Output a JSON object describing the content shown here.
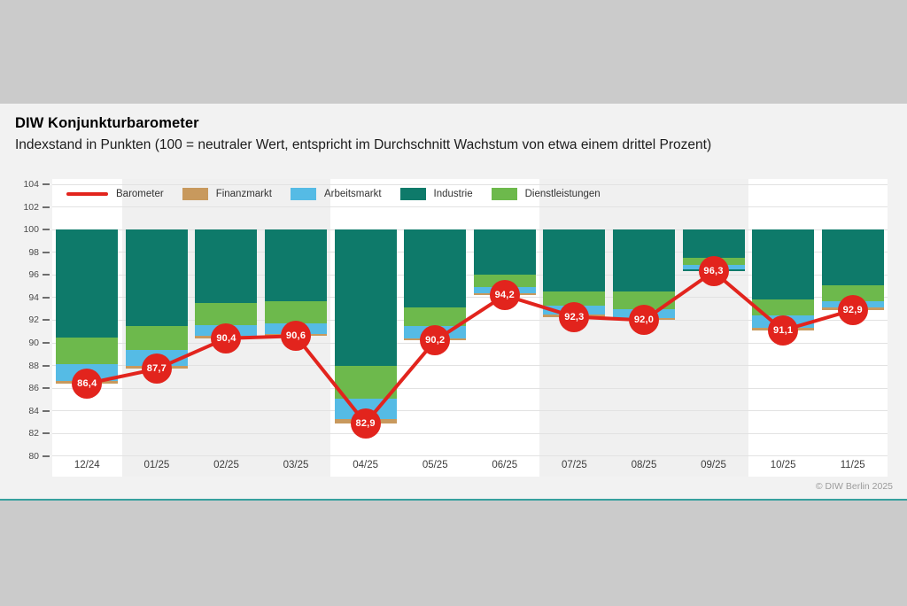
{
  "header": {
    "title": "DIW Konjunkturbarometer",
    "subtitle": "Indexstand in Punkten (100 = neutraler Wert, entspricht im Durchschnitt Wachstum von etwa einem drittel Prozent)"
  },
  "footer": {
    "copyright": "© DIW Berlin 2025"
  },
  "colors": {
    "outer_background": "#cbcbcb",
    "panel_background": "#f2f2f2",
    "plot_background": "#ffffff",
    "quarter_stripe": "#f0f0f0",
    "gridline": "#e2e2e2",
    "panel_border_teal": "#35a09e",
    "axis_text": "#4b4b4b"
  },
  "chart_data": {
    "type": "bar",
    "subtype": "stacked-contribution-bars-hanging-from-100-with-line-overlay",
    "title": "DIW Konjunkturbarometer",
    "xlabel": "",
    "ylabel": "Indexstand in Punkten",
    "ylim": [
      80,
      104
    ],
    "ytick_step": 2,
    "yticks": [
      104,
      102,
      100,
      98,
      96,
      94,
      92,
      90,
      88,
      86,
      84,
      82,
      80
    ],
    "baseline": 100,
    "grid": true,
    "legend_position": "top-left-inside",
    "quarter_shaded_slot_ranges": [
      [
        1,
        3
      ],
      [
        7,
        9
      ]
    ],
    "categories": [
      "12/24",
      "01/25",
      "02/25",
      "03/25",
      "04/25",
      "05/25",
      "06/25",
      "07/25",
      "08/25",
      "09/25",
      "10/25",
      "11/25"
    ],
    "legend": [
      {
        "name": "Barometer",
        "swatch": "line",
        "color": "#e2241d"
      },
      {
        "name": "Finanzmarkt",
        "swatch": "box",
        "color": "#c8995d"
      },
      {
        "name": "Arbeitsmarkt",
        "swatch": "box",
        "color": "#55bbe5"
      },
      {
        "name": "Industrie",
        "swatch": "box",
        "color": "#0e7a6a"
      },
      {
        "name": "Dienstleistungen",
        "swatch": "box",
        "color": "#6db94c"
      }
    ],
    "component_colors": {
      "finanzmarkt": "#c8995d",
      "arbeitsmarkt": "#55bbe5",
      "dienstleistungen": "#6db94c",
      "industrie": "#0e7a6a"
    },
    "line_series": {
      "name": "Barometer",
      "color": "#e2241d",
      "values": [
        86.4,
        87.7,
        90.4,
        90.6,
        82.9,
        90.2,
        94.2,
        92.3,
        92.0,
        96.3,
        91.1,
        92.9
      ],
      "point_labels": [
        "86,4",
        "87,7",
        "90,4",
        "90,6",
        "82,9",
        "90,2",
        "94,2",
        "92,3",
        "92,0",
        "96,3",
        "91,1",
        "92,9"
      ]
    },
    "bars": [
      {
        "month": "12/24",
        "barometer": 86.4,
        "segments": [
          [
            "finanzmarkt",
            0.2
          ],
          [
            "arbeitsmarkt",
            1.5
          ],
          [
            "dienstleistungen",
            2.4
          ],
          [
            "industrie",
            9.5
          ]
        ]
      },
      {
        "month": "01/25",
        "barometer": 87.7,
        "segments": [
          [
            "finanzmarkt",
            0.3
          ],
          [
            "arbeitsmarkt",
            1.4
          ],
          [
            "dienstleistungen",
            2.1
          ],
          [
            "industrie",
            8.5
          ]
        ]
      },
      {
        "month": "02/25",
        "barometer": 90.4,
        "segments": [
          [
            "finanzmarkt",
            0.2
          ],
          [
            "arbeitsmarkt",
            1.0
          ],
          [
            "dienstleistungen",
            1.9
          ],
          [
            "industrie",
            6.5
          ]
        ]
      },
      {
        "month": "03/25",
        "barometer": 90.6,
        "segments": [
          [
            "finanzmarkt",
            0.2
          ],
          [
            "arbeitsmarkt",
            0.9
          ],
          [
            "dienstleistungen",
            2.0
          ],
          [
            "industrie",
            6.3
          ]
        ]
      },
      {
        "month": "04/25",
        "barometer": 82.9,
        "segments": [
          [
            "finanzmarkt",
            0.4
          ],
          [
            "arbeitsmarkt",
            1.8
          ],
          [
            "dienstleistungen",
            2.9
          ],
          [
            "industrie",
            12.0
          ]
        ]
      },
      {
        "month": "05/25",
        "barometer": 90.2,
        "segments": [
          [
            "finanzmarkt",
            0.2
          ],
          [
            "arbeitsmarkt",
            1.1
          ],
          [
            "dienstleistungen",
            1.6
          ],
          [
            "industrie",
            6.9
          ]
        ]
      },
      {
        "month": "06/25",
        "barometer": 94.2,
        "segments": [
          [
            "finanzmarkt",
            0.2
          ],
          [
            "arbeitsmarkt",
            0.5
          ],
          [
            "dienstleistungen",
            1.1
          ],
          [
            "industrie",
            4.0
          ]
        ]
      },
      {
        "month": "07/25",
        "barometer": 92.3,
        "segments": [
          [
            "finanzmarkt",
            0.2
          ],
          [
            "arbeitsmarkt",
            0.8
          ],
          [
            "dienstleistungen",
            1.2
          ],
          [
            "industrie",
            5.5
          ]
        ]
      },
      {
        "month": "08/25",
        "barometer": 92.0,
        "segments": [
          [
            "finanzmarkt",
            0.2
          ],
          [
            "arbeitsmarkt",
            0.8
          ],
          [
            "dienstleistungen",
            1.5
          ],
          [
            "industrie",
            5.5
          ]
        ]
      },
      {
        "month": "09/25",
        "barometer": 96.3,
        "segments": [
          [
            "industrie",
            0.2
          ],
          [
            "arbeitsmarkt",
            0.4
          ],
          [
            "dienstleistungen",
            0.6
          ],
          [
            "industrie",
            2.5
          ]
        ]
      },
      {
        "month": "10/25",
        "barometer": 91.1,
        "segments": [
          [
            "finanzmarkt",
            0.2
          ],
          [
            "arbeitsmarkt",
            1.1
          ],
          [
            "dienstleistungen",
            1.4
          ],
          [
            "industrie",
            6.2
          ]
        ]
      },
      {
        "month": "11/25",
        "barometer": 92.9,
        "segments": [
          [
            "finanzmarkt",
            0.2
          ],
          [
            "arbeitsmarkt",
            0.6
          ],
          [
            "dienstleistungen",
            1.4
          ],
          [
            "industrie",
            4.9
          ]
        ]
      }
    ]
  }
}
